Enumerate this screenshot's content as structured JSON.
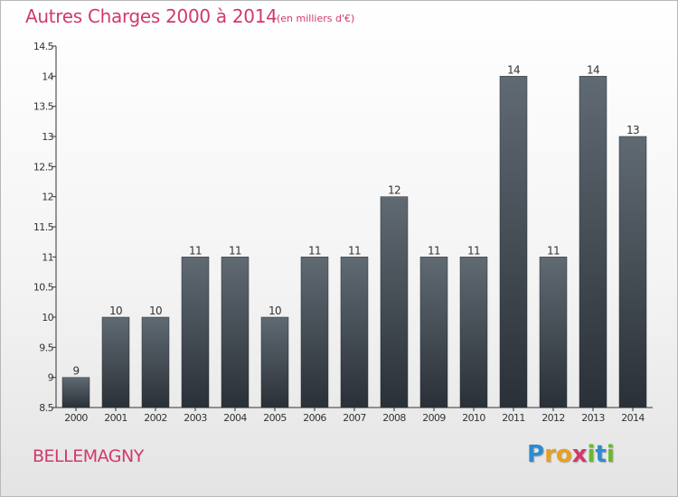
{
  "header": {
    "title": "Autres Charges 2000 à 2014",
    "subtitle": "(en milliers d'€)"
  },
  "footer": {
    "location": "BELLEMAGNY",
    "brand_letters": [
      "P",
      "r",
      "o",
      "x",
      "i",
      "t",
      "i"
    ],
    "brand_colors": [
      "#2e8bd0",
      "#e8a020",
      "#e8a020",
      "#d2396b",
      "#6ab82e",
      "#2e8bd0",
      "#6ab82e"
    ]
  },
  "chart_data": {
    "type": "bar",
    "categories": [
      "2000",
      "2001",
      "2002",
      "2003",
      "2004",
      "2005",
      "2006",
      "2007",
      "2008",
      "2009",
      "2010",
      "2011",
      "2012",
      "2013",
      "2014"
    ],
    "values": [
      9,
      10,
      10,
      11,
      11,
      10,
      11,
      11,
      12,
      11,
      11,
      14,
      11,
      14,
      13
    ],
    "value_labels": [
      "9",
      "10",
      "10",
      "11",
      "11",
      "10",
      "11",
      "11",
      "12",
      "11",
      "11",
      "14",
      "11",
      "14",
      "13"
    ],
    "y_ticks": [
      8.5,
      9,
      9.5,
      10,
      10.5,
      11,
      11.5,
      12,
      12.5,
      13,
      13.5,
      14,
      14.5
    ],
    "y_tick_labels": [
      "8.5",
      "9",
      "9.5",
      "10",
      "10.5",
      "11",
      "11.5",
      "12",
      "12.5",
      "13",
      "13.5",
      "14",
      "14.5"
    ],
    "ylim": [
      8.5,
      14.5
    ],
    "grid": false,
    "bar_color_top": "#606a73",
    "bar_color_bottom": "#2a3037",
    "title": "Autres Charges 2000 à 2014",
    "xlabel": "",
    "ylabel": ""
  }
}
